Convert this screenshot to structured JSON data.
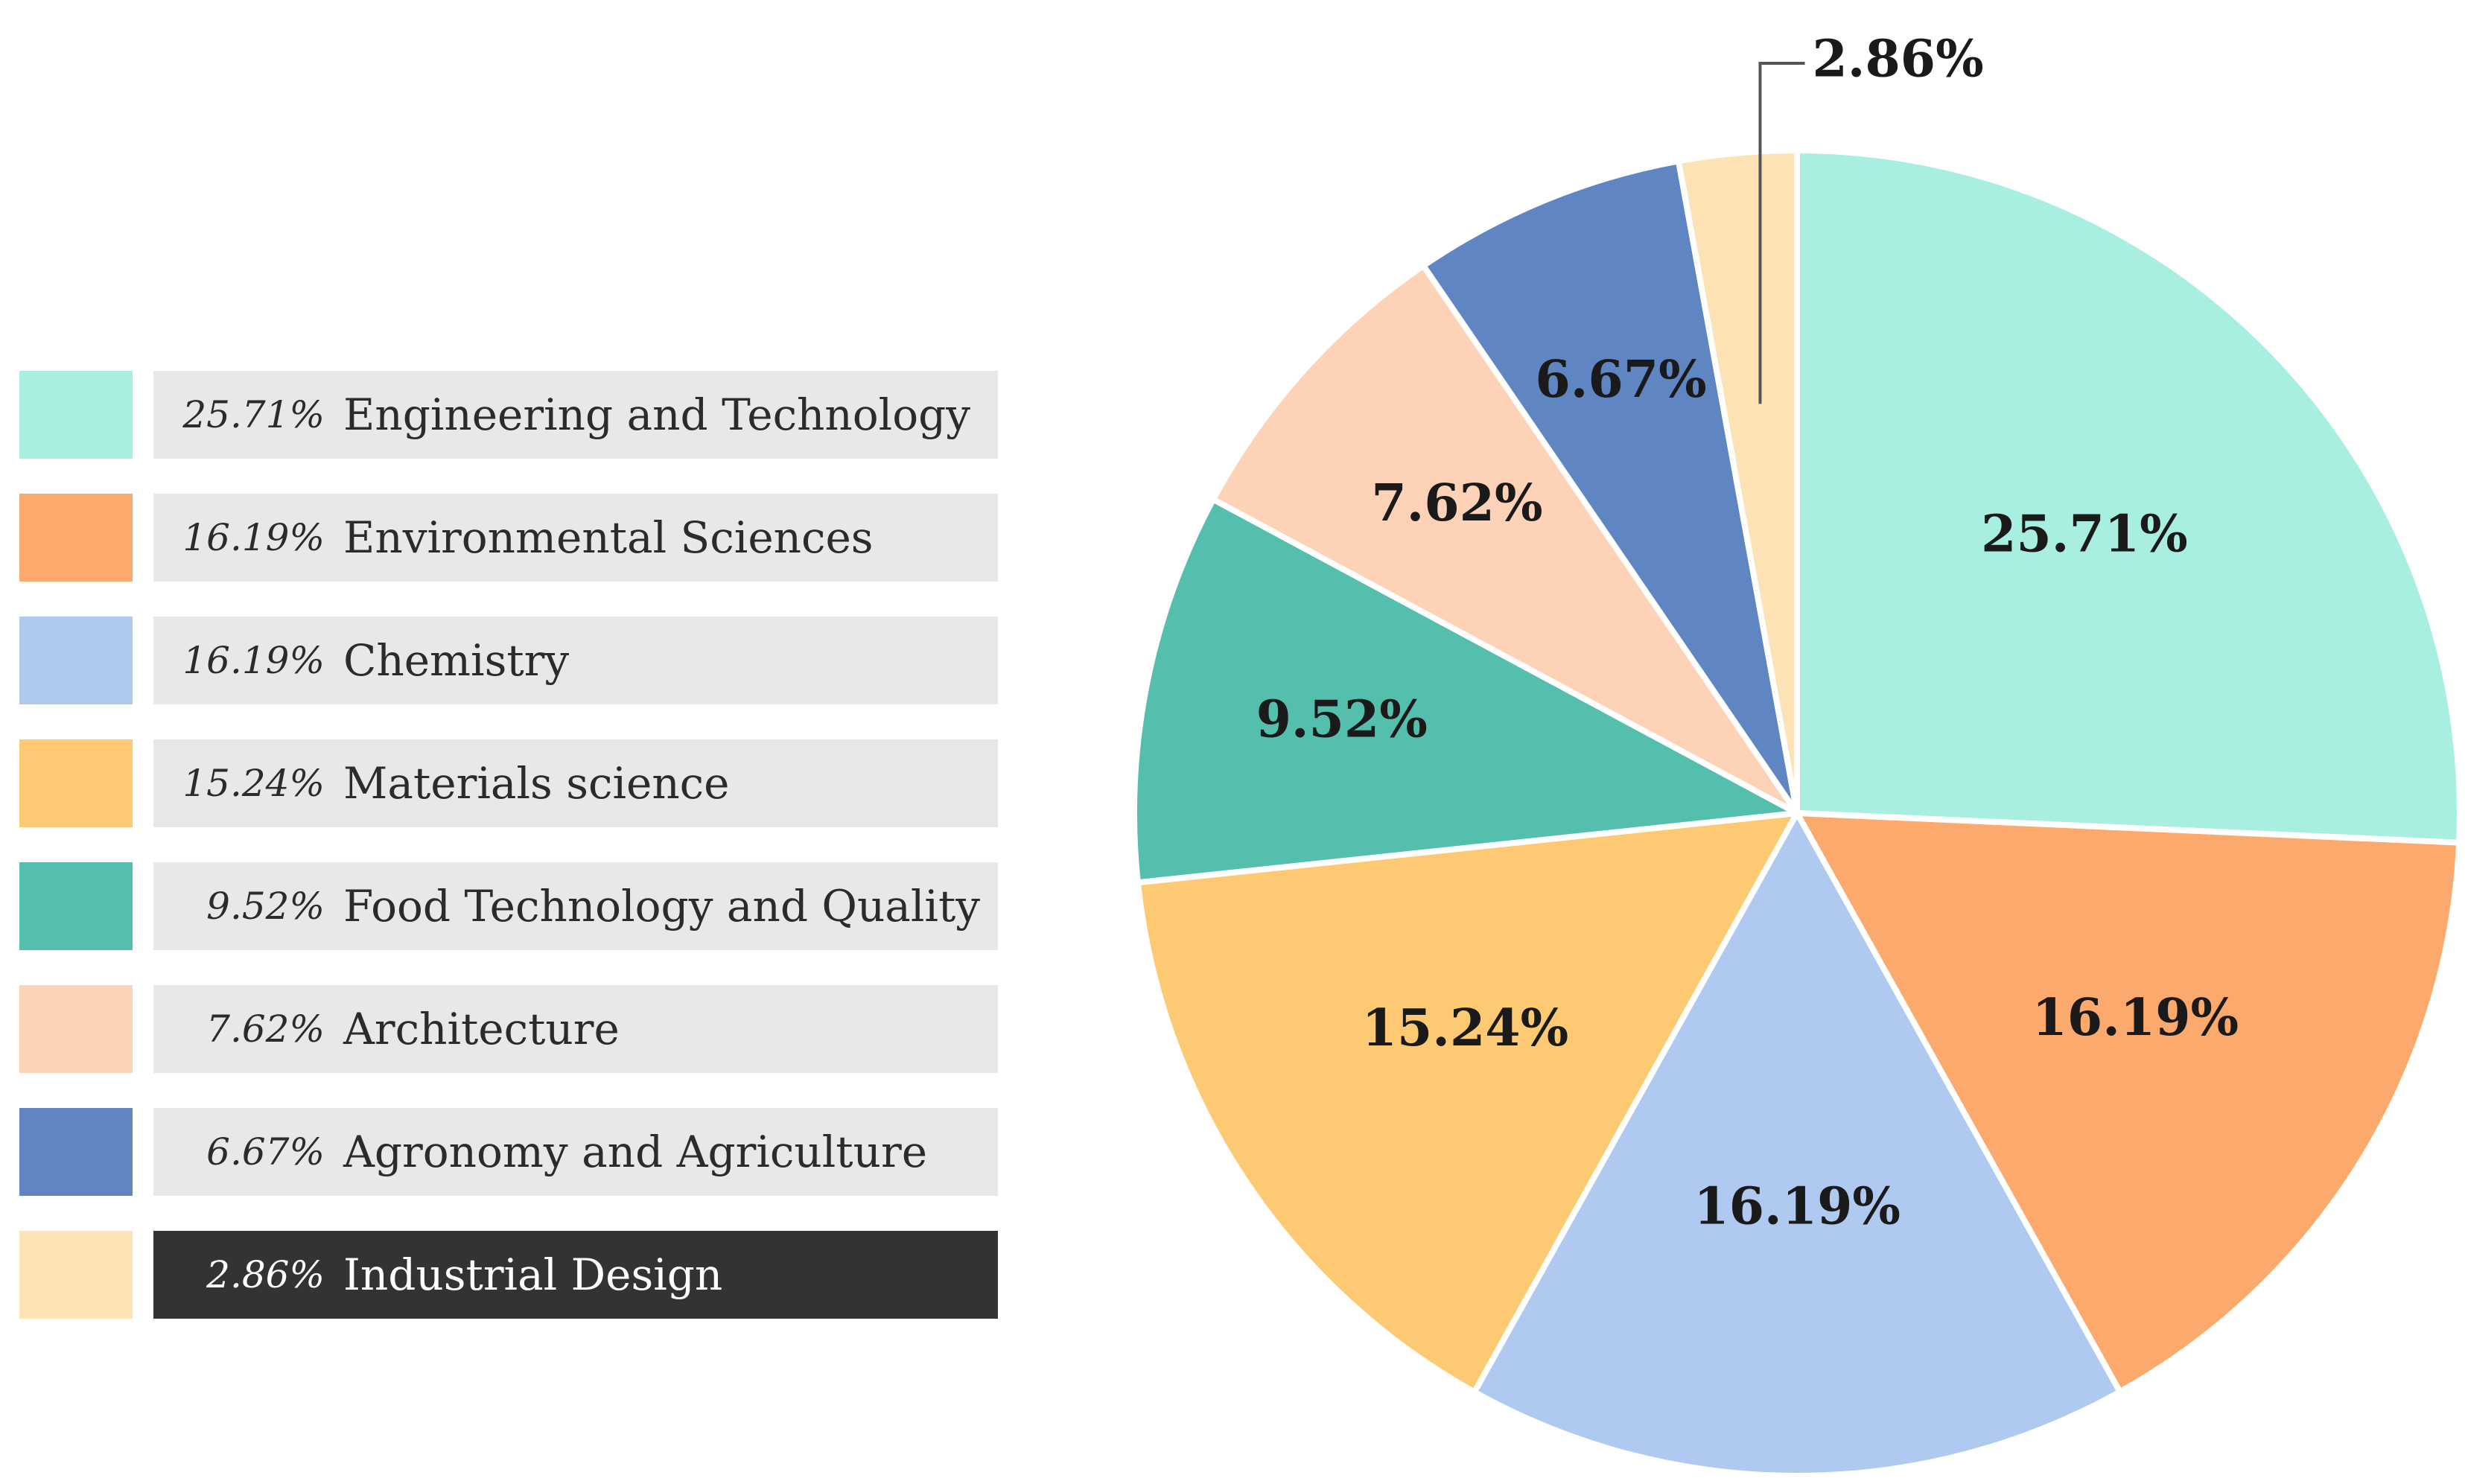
{
  "chart_data": {
    "type": "pie",
    "title": "",
    "categories": [
      "Engineering and Technology",
      "Environmental Sciences",
      "Chemistry",
      "Materials science",
      "Food Technology and Quality",
      "Architecture",
      "Agronomy and Agriculture",
      "Industrial Design"
    ],
    "values": [
      25.71,
      16.19,
      16.19,
      15.24,
      9.52,
      7.62,
      6.67,
      2.86
    ],
    "value_labels": [
      "25.71%",
      "16.19%",
      "16.19%",
      "15.24%",
      "9.52%",
      "7.62%",
      "6.67%",
      "2.86%"
    ],
    "colors": [
      "#a8efe2",
      "#fba96c",
      "#b0c9f1",
      "#fdc972",
      "#55bfad",
      "#fdd2b7",
      "#6085c3",
      "#fde2b5"
    ],
    "legend_position": "left",
    "highlighted_index": 7,
    "unit": "%"
  },
  "legend": {
    "items": [
      {
        "pct": "25.71%",
        "label": "Engineering and Technology"
      },
      {
        "pct": "16.19%",
        "label": "Environmental Sciences"
      },
      {
        "pct": "16.19%",
        "label": "Chemistry"
      },
      {
        "pct": "15.24%",
        "label": "Materials science"
      },
      {
        "pct": "9.52%",
        "label": "Food Technology and Quality"
      },
      {
        "pct": "7.62%",
        "label": "Architecture"
      },
      {
        "pct": "6.67%",
        "label": "Agronomy and Agriculture"
      },
      {
        "pct": "2.86%",
        "label": "Industrial Design"
      }
    ]
  }
}
